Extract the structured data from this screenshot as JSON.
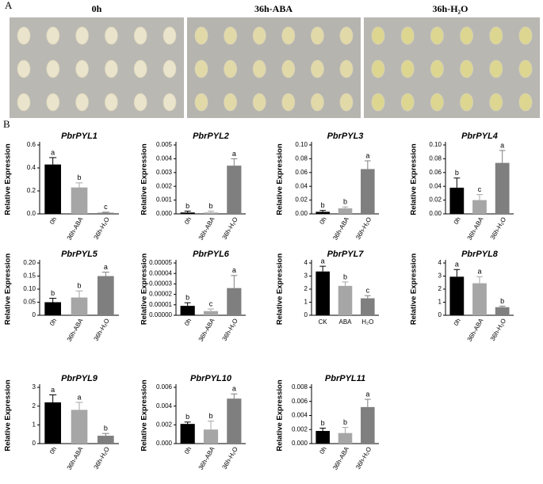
{
  "panel_a": {
    "label": "A",
    "columns": [
      "0h",
      "36h-ABA",
      "36h-H₂O"
    ]
  },
  "panel_b_label": "B",
  "chart_data": [
    {
      "type": "bar",
      "title": "PbrPYL1",
      "y_label": "Relative Expression",
      "categories": [
        "0h",
        "36h-ABA",
        "36h-H₂O"
      ],
      "values": [
        0.43,
        0.23,
        0.01
      ],
      "errors": [
        0.06,
        0.04,
        0.005
      ],
      "letters": [
        "a",
        "b",
        "c"
      ],
      "colors": [
        "#000000",
        "#a6a6a6",
        "#7f7f7f"
      ],
      "ylim": [
        0,
        0.6
      ],
      "yticks": [
        {
          "value": 0,
          "label": "0.0"
        },
        0.2,
        0.4,
        0.6
      ]
    },
    {
      "type": "bar",
      "title": "PbrPYL2",
      "y_label": "Relative Expression",
      "categories": [
        "0h",
        "36h-ABA",
        "36h-H₂O"
      ],
      "values": [
        0.0001,
        0.0001,
        0.0035
      ],
      "errors": [
        0.0001,
        0.0001,
        0.0005
      ],
      "letters": [
        "b",
        "b",
        "a"
      ],
      "colors": [
        "#000000",
        "#a6a6a6",
        "#7f7f7f"
      ],
      "ylim": [
        0,
        0.005
      ],
      "yticks": [
        {
          "value": 0,
          "label": "0.000"
        },
        0.001,
        0.002,
        0.003,
        0.004,
        0.005
      ]
    },
    {
      "type": "bar",
      "title": "PbrPYL3",
      "y_label": "Relative Expression",
      "categories": [
        "0h",
        "36h-ABA",
        "36h-H₂O"
      ],
      "values": [
        0.003,
        0.008,
        0.065
      ],
      "errors": [
        0.002,
        0.002,
        0.012
      ],
      "letters": [
        "b",
        "b",
        "a"
      ],
      "colors": [
        "#000000",
        "#a6a6a6",
        "#7f7f7f"
      ],
      "ylim": [
        0,
        0.1
      ],
      "yticks": [
        {
          "value": 0,
          "label": "0.00"
        },
        0.02,
        0.04,
        0.06,
        0.08,
        {
          "value": 0.1,
          "label": "0.10"
        }
      ]
    },
    {
      "type": "bar",
      "title": "PbrPYL4",
      "y_label": "Relative Expression",
      "categories": [
        "0h",
        "36h-ABA",
        "36h-H₂O"
      ],
      "values": [
        0.038,
        0.02,
        0.074
      ],
      "errors": [
        0.014,
        0.008,
        0.018
      ],
      "letters": [
        "b",
        "c",
        "a"
      ],
      "colors": [
        "#000000",
        "#a6a6a6",
        "#7f7f7f"
      ],
      "ylim": [
        0,
        0.1
      ],
      "yticks": [
        {
          "value": 0,
          "label": "0.00"
        },
        0.02,
        0.04,
        0.06,
        0.08,
        {
          "value": 0.1,
          "label": "0.10"
        }
      ]
    },
    {
      "type": "bar",
      "title": "PbrPYL5",
      "y_label": "Relative Expression",
      "categories": [
        "0h",
        "36h-ABA",
        "36h-H₂O"
      ],
      "values": [
        0.05,
        0.068,
        0.15
      ],
      "errors": [
        0.015,
        0.025,
        0.015
      ],
      "letters": [
        "b",
        "b",
        "a"
      ],
      "colors": [
        "#000000",
        "#a6a6a6",
        "#7f7f7f"
      ],
      "ylim": [
        0,
        0.2
      ],
      "yticks": [
        0,
        0.05,
        {
          "value": 0.1,
          "label": "0.10"
        },
        0.15,
        {
          "value": 0.2,
          "label": "0.20"
        }
      ]
    },
    {
      "type": "bar",
      "title": "PbrPYL6",
      "y_label": "Relative Expression",
      "categories": [
        "0h",
        "36h-ABA",
        "36h-H₂O"
      ],
      "values": [
        9e-06,
        4e-06,
        2.6e-05
      ],
      "errors": [
        3e-06,
        2e-06,
        1.2e-05
      ],
      "letters": [
        "b",
        "c",
        "a"
      ],
      "colors": [
        "#000000",
        "#a6a6a6",
        "#7f7f7f"
      ],
      "ylim": [
        0,
        5e-05
      ],
      "yticks": [
        {
          "value": 0,
          "label": "0.00000"
        },
        {
          "value": 1e-05,
          "label": "0.00001"
        },
        {
          "value": 2e-05,
          "label": "0.00002"
        },
        {
          "value": 3e-05,
          "label": "0.00003"
        },
        {
          "value": 4e-05,
          "label": "0.00004"
        },
        {
          "value": 5e-05,
          "label": "0.00005"
        }
      ]
    },
    {
      "type": "bar",
      "title": "PbrPYL7",
      "y_label": "Relative Expression",
      "categories": [
        "CK",
        "ABA",
        "H₂O"
      ],
      "values": [
        3.35,
        2.25,
        1.3
      ],
      "errors": [
        0.4,
        0.3,
        0.2
      ],
      "letters": [
        "a",
        "b",
        "c"
      ],
      "colors": [
        "#000000",
        "#a6a6a6",
        "#7f7f7f"
      ],
      "ylim": [
        0,
        4
      ],
      "yticks": [
        0,
        1,
        2,
        3,
        4
      ]
    },
    {
      "type": "bar",
      "title": "PbrPYL8",
      "y_label": "Relative Expression",
      "categories": [
        "0h",
        "36h-ABA",
        "36h-H₂O"
      ],
      "values": [
        2.95,
        2.45,
        0.62
      ],
      "errors": [
        0.55,
        0.5,
        0.08
      ],
      "letters": [
        "a",
        "a",
        "b"
      ],
      "colors": [
        "#000000",
        "#a6a6a6",
        "#7f7f7f"
      ],
      "ylim": [
        0,
        4
      ],
      "yticks": [
        0,
        1,
        2,
        3,
        4
      ]
    },
    {
      "type": "bar",
      "title": "PbrPYL9",
      "y_label": "Relative Expression",
      "categories": [
        "0h",
        "36h-ABA",
        "36h-H₂O"
      ],
      "values": [
        2.2,
        1.8,
        0.42
      ],
      "errors": [
        0.4,
        0.4,
        0.12
      ],
      "letters": [
        "a",
        "a",
        "b"
      ],
      "colors": [
        "#000000",
        "#a6a6a6",
        "#7f7f7f"
      ],
      "ylim": [
        0,
        3
      ],
      "yticks": [
        0,
        1,
        2,
        3
      ]
    },
    {
      "type": "bar",
      "title": "PbrPYL10",
      "y_label": "Relative Expression",
      "categories": [
        "0h",
        "36h-ABA",
        "36h-H₂O"
      ],
      "values": [
        0.0021,
        0.0015,
        0.0048
      ],
      "errors": [
        0.0002,
        0.0009,
        0.0005
      ],
      "letters": [
        "b",
        "b",
        "a"
      ],
      "colors": [
        "#000000",
        "#a6a6a6",
        "#7f7f7f"
      ],
      "ylim": [
        0,
        0.006
      ],
      "yticks": [
        {
          "value": 0,
          "label": "0.000"
        },
        0.002,
        0.004,
        0.006
      ]
    },
    {
      "type": "bar",
      "title": "PbrPYL11",
      "y_label": "Relative Expression",
      "categories": [
        "0h",
        "36h-ABA",
        "36h-H₂O"
      ],
      "values": [
        0.0018,
        0.0015,
        0.0052
      ],
      "errors": [
        0.0004,
        0.0008,
        0.0011
      ],
      "letters": [
        "b",
        "b",
        "a"
      ],
      "colors": [
        "#000000",
        "#a6a6a6",
        "#7f7f7f"
      ],
      "ylim": [
        0,
        0.008
      ],
      "yticks": [
        {
          "value": 0,
          "label": "0.000"
        },
        0.002,
        0.004,
        0.006,
        0.008
      ]
    }
  ]
}
